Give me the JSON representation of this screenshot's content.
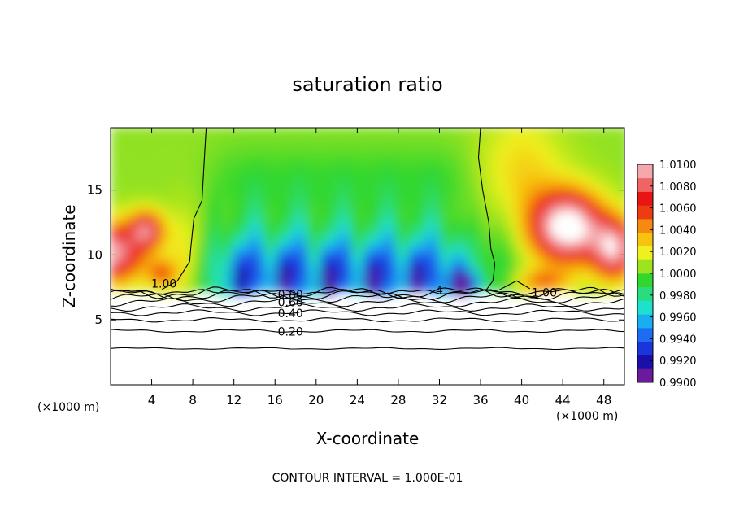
{
  "chart_data": {
    "type": "heatmap",
    "title": "saturation ratio",
    "xlabel": "X-coordinate",
    "ylabel": "Z-coordinate",
    "x_unit": "(×1000 m)",
    "xlim": [
      0,
      50
    ],
    "ylim": [
      0,
      19.8
    ],
    "x_ticks": [
      4,
      8,
      12,
      16,
      20,
      24,
      28,
      32,
      36,
      40,
      44,
      48
    ],
    "y_ticks": [
      5,
      10,
      15
    ],
    "colorbar": {
      "min": 0.99,
      "max": 1.01,
      "tick_values": [
        0.99,
        0.992,
        0.994,
        0.996,
        0.998,
        1.0,
        1.002,
        1.004,
        1.006,
        1.008,
        1.01
      ],
      "tick_labels": [
        "0.9900",
        "0.9920",
        "0.9940",
        "0.9960",
        "0.9980",
        "1.0000",
        "1.0020",
        "1.0040",
        "1.0060",
        "1.0080",
        "1.0100"
      ]
    },
    "contour_labels": [
      {
        "text": "1.00",
        "x": 5.2,
        "z": 7.8
      },
      {
        "text": "0.80",
        "x": 17.5,
        "z": 6.95
      },
      {
        "text": "0.60",
        "x": 17.5,
        "z": 6.35
      },
      {
        "text": "0.40",
        "x": 17.5,
        "z": 5.5
      },
      {
        "text": "0.20",
        "x": 17.5,
        "z": 4.1
      },
      {
        "text": "1.00",
        "x": 42.2,
        "z": 7.1
      },
      {
        "text": "4",
        "x": 32.0,
        "z": 7.3
      }
    ],
    "footer": "CONTOUR INTERVAL = 1.000E-01"
  }
}
